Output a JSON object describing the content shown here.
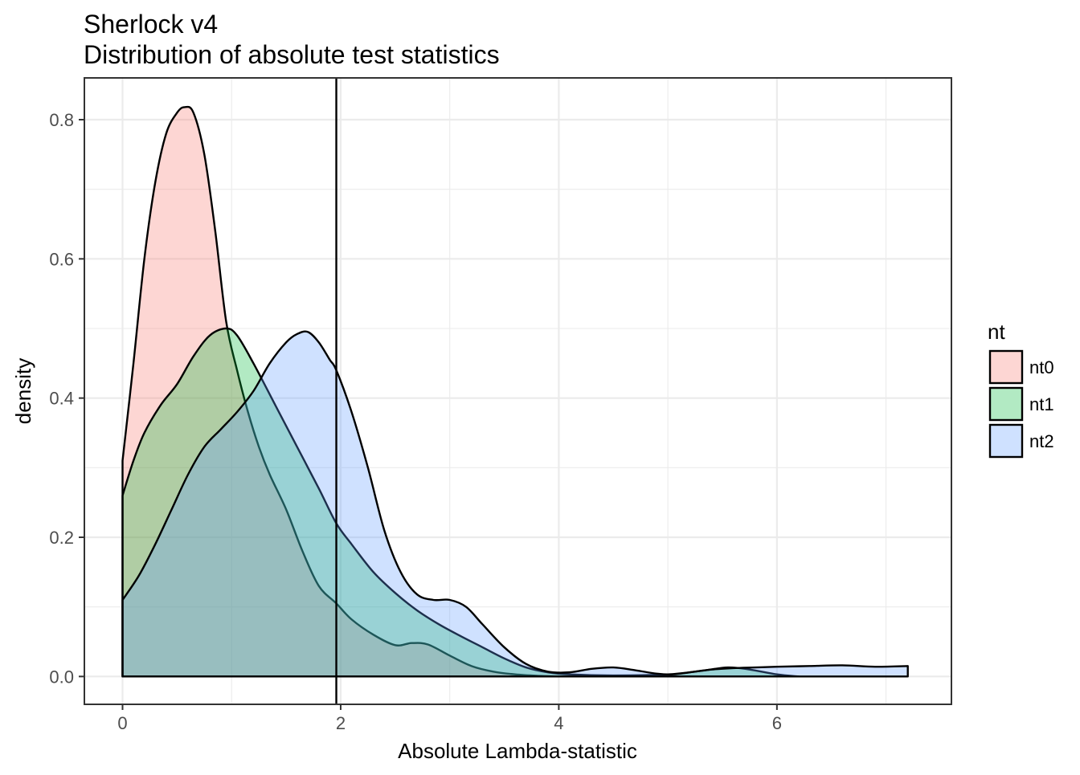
{
  "chart_data": {
    "type": "area",
    "title": "Sherlock v4",
    "subtitle": "Distribution of absolute test statistics",
    "xlabel": "Absolute Lambda-statistic",
    "ylabel": "density",
    "xlim": [
      -0.35,
      7.6
    ],
    "ylim": [
      -0.04,
      0.86
    ],
    "x_ticks": [
      0,
      2,
      4,
      6
    ],
    "x_tick_labels": [
      "0",
      "2",
      "4",
      "6"
    ],
    "y_ticks": [
      0.0,
      0.2,
      0.4,
      0.6,
      0.8
    ],
    "y_tick_labels": [
      "0.0",
      "0.2",
      "0.4",
      "0.6",
      "0.8"
    ],
    "grid": true,
    "vline": 1.96,
    "legend": {
      "title": "nt",
      "position": "right",
      "entries": [
        "nt0",
        "nt1",
        "nt2"
      ]
    },
    "colors": {
      "nt0": "#F8766D",
      "nt1": "#00BA38",
      "nt2": "#619CFF",
      "outline": "#000000",
      "panel_border": "#333333",
      "grid": "#ebebeb"
    },
    "series": [
      {
        "name": "nt0",
        "x": [
          0,
          0.1,
          0.2,
          0.3,
          0.4,
          0.5,
          0.57,
          0.65,
          0.75,
          0.85,
          0.95,
          1.05,
          1.15,
          1.25,
          1.35,
          1.5,
          1.65,
          1.8,
          1.96,
          2.1,
          2.3,
          2.5,
          2.65,
          2.8,
          3.0,
          3.2,
          3.4,
          3.6,
          3.8,
          4.0
        ],
        "y": [
          0.31,
          0.45,
          0.6,
          0.71,
          0.78,
          0.81,
          0.818,
          0.81,
          0.75,
          0.64,
          0.51,
          0.44,
          0.38,
          0.33,
          0.29,
          0.24,
          0.18,
          0.13,
          0.105,
          0.082,
          0.06,
          0.045,
          0.048,
          0.046,
          0.03,
          0.015,
          0.007,
          0.003,
          0.001,
          0.0
        ]
      },
      {
        "name": "nt1",
        "x": [
          0,
          0.1,
          0.2,
          0.35,
          0.5,
          0.65,
          0.8,
          0.95,
          1.05,
          1.2,
          1.4,
          1.6,
          1.8,
          1.96,
          2.1,
          2.3,
          2.5,
          2.7,
          2.9,
          3.1,
          3.3,
          3.5,
          3.7,
          3.9,
          4.1,
          4.5,
          5.0,
          5.3,
          5.55,
          5.75,
          6.0,
          6.2
        ],
        "y": [
          0.26,
          0.31,
          0.35,
          0.39,
          0.42,
          0.46,
          0.49,
          0.5,
          0.49,
          0.45,
          0.39,
          0.33,
          0.27,
          0.22,
          0.19,
          0.15,
          0.12,
          0.095,
          0.075,
          0.058,
          0.042,
          0.026,
          0.013,
          0.006,
          0.003,
          0.0015,
          0.003,
          0.008,
          0.013,
          0.01,
          0.003,
          0.0
        ]
      },
      {
        "name": "nt2",
        "x": [
          0,
          0.15,
          0.3,
          0.45,
          0.6,
          0.75,
          0.9,
          1.05,
          1.2,
          1.35,
          1.5,
          1.6,
          1.7,
          1.8,
          1.9,
          1.96,
          2.1,
          2.25,
          2.4,
          2.55,
          2.7,
          2.85,
          3.0,
          3.15,
          3.3,
          3.5,
          3.7,
          3.9,
          4.1,
          4.3,
          4.5,
          4.7,
          4.9,
          5.05,
          5.2,
          5.4,
          5.6,
          5.8,
          6.0,
          6.3,
          6.6,
          6.9,
          7.2
        ],
        "y": [
          0.11,
          0.145,
          0.19,
          0.24,
          0.29,
          0.33,
          0.355,
          0.38,
          0.41,
          0.45,
          0.48,
          0.492,
          0.495,
          0.48,
          0.455,
          0.44,
          0.38,
          0.3,
          0.21,
          0.15,
          0.118,
          0.11,
          0.11,
          0.1,
          0.075,
          0.042,
          0.018,
          0.007,
          0.006,
          0.011,
          0.013,
          0.009,
          0.004,
          0.003,
          0.006,
          0.01,
          0.012,
          0.013,
          0.014,
          0.015,
          0.016,
          0.014,
          0.015
        ]
      }
    ]
  }
}
